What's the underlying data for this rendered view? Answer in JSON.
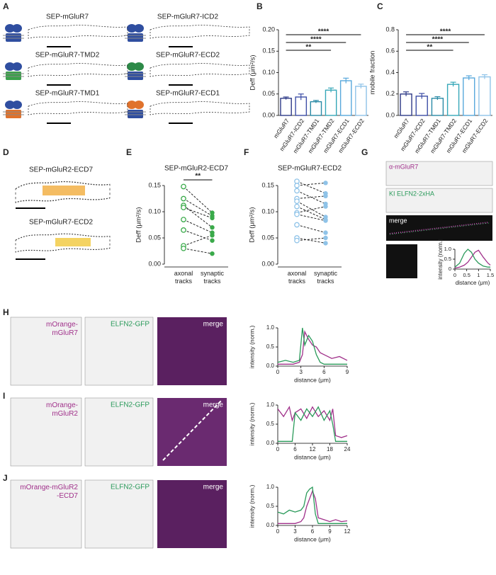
{
  "panels": {
    "letters": [
      "A",
      "B",
      "C",
      "D",
      "E",
      "F",
      "G",
      "H",
      "I",
      "J"
    ],
    "A": [
      "SEP-mGluR7",
      "SEP-mGluR7-ICD2",
      "SEP-mGluR7-TMD2",
      "SEP-mGluR7-ECD2",
      "SEP-mGluR7-TMD1",
      "SEP-mGluR7-ECD1"
    ],
    "D": [
      "SEP-mGluR2-ECD7",
      "SEP-mGluR7-ECD2"
    ],
    "G": [
      "α-mGluR7",
      "KI ELFN2-2xHA",
      "merge"
    ],
    "H": [
      [
        "mOrange-",
        "mGluR7"
      ],
      "ELFN2-GFP",
      "merge"
    ],
    "I": [
      [
        "mOrange-",
        "mGluR2"
      ],
      "ELFN2-GFP",
      "merge"
    ],
    "J": [
      [
        "mOrange-mGluR2",
        "-ECD7"
      ],
      "ELFN2-GFP",
      "merge"
    ]
  },
  "chart_data": [
    {
      "type": "bar",
      "y_label": "Deff (μm²/s)",
      "categories": [
        "mGluR7",
        "mGluR7-ICD2",
        "mGluR7-TMD1",
        "mGluR7-TMD2",
        "mGluR7-ECD1",
        "mGluR7-ECD2"
      ],
      "values": [
        0.04,
        0.043,
        0.032,
        0.059,
        0.081,
        0.068
      ],
      "errors": [
        0.003,
        0.007,
        0.003,
        0.005,
        0.006,
        0.005
      ],
      "colors": [
        "#2e3a87",
        "#3d4ea6",
        "#2a8aa6",
        "#35a7b8",
        "#58a8dc",
        "#8fc3e8"
      ],
      "ylim": [
        0,
        0.2
      ],
      "yticks": [
        {
          "value": 0,
          "label": "0.00"
        },
        0.05,
        {
          "value": 0.1,
          "label": "0.10"
        },
        0.15,
        {
          "value": 0.2,
          "label": "0.20"
        }
      ],
      "significance": [
        {
          "between": [
            "mGluR7",
            "mGluR7-ECD2"
          ],
          "label": "****"
        },
        {
          "between": [
            "mGluR7",
            "mGluR7-ECD1"
          ],
          "label": "****"
        },
        {
          "between": [
            "mGluR7",
            "mGluR7-TMD2"
          ],
          "label": "**"
        }
      ]
    },
    {
      "type": "bar",
      "y_label": "mobile fraction",
      "categories": [
        "mGluR7",
        "mGluR7-ICD2",
        "mGluR7-TMD1",
        "mGluR7-TMD2",
        "mGluR7-ECD1",
        "mGluR7-ECD2"
      ],
      "values": [
        0.2,
        0.18,
        0.16,
        0.29,
        0.35,
        0.36
      ],
      "errors": [
        0.02,
        0.025,
        0.015,
        0.02,
        0.02,
        0.02
      ],
      "colors": [
        "#2e3a87",
        "#3d4ea6",
        "#2a8aa6",
        "#35a7b8",
        "#58a8dc",
        "#8fc3e8"
      ],
      "ylim": [
        0,
        0.8
      ],
      "yticks": [
        {
          "value": 0,
          "label": "0.0"
        },
        0.2,
        0.4,
        0.6,
        0.8
      ],
      "significance": [
        {
          "between": [
            "mGluR7",
            "mGluR7-ECD2"
          ],
          "label": "****"
        },
        {
          "between": [
            "mGluR7",
            "mGluR7-ECD1"
          ],
          "label": "****"
        },
        {
          "between": [
            "mGluR7",
            "mGluR7-TMD2"
          ],
          "label": "**"
        }
      ]
    },
    {
      "type": "slope",
      "title": "SEP-mGluR2-ECD7",
      "y_label": "Deff (μm²/s)",
      "color": "#3aaa4a",
      "categories": [
        [
          "axonal",
          "tracks"
        ],
        [
          "synaptic",
          "tracks"
        ]
      ],
      "series": [
        {
          "values": [
            0.148,
            0.098
          ]
        },
        {
          "values": [
            0.125,
            0.092
          ]
        },
        {
          "values": [
            0.112,
            0.07
          ]
        },
        {
          "values": [
            0.108,
            0.088
          ]
        },
        {
          "values": [
            0.085,
            0.06
          ]
        },
        {
          "values": [
            0.065,
            0.045
          ]
        },
        {
          "values": [
            0.035,
            0.055
          ]
        },
        {
          "values": [
            0.03,
            0.02
          ]
        }
      ],
      "ylim": [
        0,
        0.15
      ],
      "yticks": [
        {
          "value": 0,
          "label": "0.00"
        },
        0.05,
        {
          "value": 0.1,
          "label": "0.10"
        },
        0.15
      ],
      "significance": "**"
    },
    {
      "type": "slope",
      "title": "SEP-mGluR7-ECD2",
      "y_label": "Deff (μm²/s)",
      "color": "#8fc3e8",
      "categories": [
        [
          "axonal",
          "tracks"
        ],
        [
          "synaptic",
          "tracks"
        ]
      ],
      "series": [
        {
          "values": [
            0.158,
            0.135
          ]
        },
        {
          "values": [
            0.15,
            0.155
          ]
        },
        {
          "values": [
            0.14,
            0.115
          ]
        },
        {
          "values": [
            0.125,
            0.13
          ]
        },
        {
          "values": [
            0.12,
            0.09
          ]
        },
        {
          "values": [
            0.11,
            0.085
          ]
        },
        {
          "values": [
            0.098,
            0.11
          ]
        },
        {
          "values": [
            0.095,
            0.083
          ]
        },
        {
          "values": [
            0.075,
            0.06
          ]
        },
        {
          "values": [
            0.05,
            0.04
          ]
        },
        {
          "values": [
            0.045,
            0.05
          ]
        }
      ],
      "ylim": [
        0,
        0.15
      ],
      "yticks": [
        {
          "value": 0,
          "label": "0.00"
        },
        0.05,
        {
          "value": 0.1,
          "label": "0.10"
        },
        0.15
      ]
    },
    {
      "type": "line",
      "x_label": "distance (μm)",
      "y_label": "intensity (norm.)",
      "x": [
        0,
        0.2,
        0.4,
        0.55,
        0.7,
        0.85,
        1.0,
        1.2,
        1.4,
        1.5
      ],
      "series": [
        {
          "color": "#a0308a",
          "values": [
            0.05,
            0.1,
            0.2,
            0.35,
            0.6,
            0.85,
            0.95,
            0.6,
            0.3,
            0.2
          ]
        },
        {
          "color": "#2a9a5a",
          "values": [
            0.1,
            0.3,
            0.8,
            1.0,
            0.85,
            0.5,
            0.3,
            0.15,
            0.1,
            0.1
          ]
        }
      ],
      "xlim": [
        0,
        1.5
      ],
      "xticks": [
        0,
        0.5,
        1,
        1.5
      ],
      "ylim": [
        0,
        1
      ],
      "yticks": [
        0,
        0.5,
        {
          "value": 1,
          "label": "1.0"
        }
      ]
    },
    {
      "type": "line",
      "x_label": "distance (μm)",
      "y_label": "intensity (norm.)",
      "x": [
        0,
        1,
        2,
        2.8,
        3.2,
        3.5,
        4,
        4.5,
        5,
        5.5,
        6,
        7,
        8,
        9
      ],
      "series": [
        {
          "color": "#a0308a",
          "values": [
            0.05,
            0.05,
            0.05,
            0.1,
            0.3,
            0.9,
            0.7,
            0.55,
            0.5,
            0.35,
            0.3,
            0.2,
            0.25,
            0.15
          ]
        },
        {
          "color": "#2a9a5a",
          "values": [
            0.1,
            0.15,
            0.1,
            0.15,
            1.0,
            0.55,
            0.8,
            0.65,
            0.3,
            0.1,
            0.05,
            0.05,
            0.05,
            0.05
          ]
        }
      ],
      "xlim": [
        0,
        9
      ],
      "xticks": [
        0,
        3,
        6,
        9
      ],
      "ylim": [
        0,
        1
      ],
      "yticks": [
        {
          "value": 0,
          "label": "0.0"
        },
        0.5,
        {
          "value": 1,
          "label": "1.0"
        }
      ]
    },
    {
      "type": "line",
      "x_label": "distance (μm)",
      "y_label": "intensity (norm.)",
      "x": [
        0,
        2,
        4,
        5,
        6,
        8,
        10,
        12,
        14,
        16,
        18,
        19,
        20,
        22,
        24
      ],
      "series": [
        {
          "color": "#a0308a",
          "values": [
            0.9,
            0.7,
            0.95,
            0.6,
            0.8,
            0.9,
            0.65,
            0.95,
            0.7,
            0.85,
            0.6,
            0.9,
            0.2,
            0.15,
            0.2
          ]
        },
        {
          "color": "#2a9a5a",
          "values": [
            0.05,
            0.05,
            0.05,
            0.05,
            0.8,
            0.6,
            0.9,
            0.7,
            0.95,
            0.6,
            0.85,
            0.5,
            0.05,
            0.05,
            0.05
          ]
        }
      ],
      "xlim": [
        0,
        24
      ],
      "xticks": [
        0,
        6,
        12,
        18,
        24
      ],
      "ylim": [
        0,
        1
      ],
      "yticks": [
        {
          "value": 0,
          "label": "0.0"
        },
        0.5,
        {
          "value": 1,
          "label": "1.0"
        }
      ]
    },
    {
      "type": "line",
      "x_label": "distance (μm)",
      "y_label": "intensity (norm.)",
      "x": [
        0,
        1,
        2,
        3,
        4,
        4.5,
        5,
        5.5,
        6,
        6.5,
        7,
        8,
        9,
        10,
        11,
        12
      ],
      "series": [
        {
          "color": "#a0308a",
          "values": [
            0.05,
            0.05,
            0.05,
            0.05,
            0.1,
            0.2,
            0.5,
            0.7,
            0.9,
            0.7,
            0.2,
            0.15,
            0.1,
            0.15,
            0.1,
            0.12
          ]
        },
        {
          "color": "#2a9a5a",
          "values": [
            0.35,
            0.3,
            0.4,
            0.35,
            0.4,
            0.5,
            0.85,
            0.95,
            1.0,
            0.3,
            0.05,
            0.05,
            0.05,
            0.05,
            0.05,
            0.05
          ]
        }
      ],
      "xlim": [
        0,
        12
      ],
      "xticks": [
        0,
        3,
        6,
        9,
        12
      ],
      "ylim": [
        0,
        1
      ],
      "yticks": [
        {
          "value": 0,
          "label": "0.0"
        },
        0.5,
        {
          "value": 1,
          "label": "1.0"
        }
      ]
    }
  ]
}
